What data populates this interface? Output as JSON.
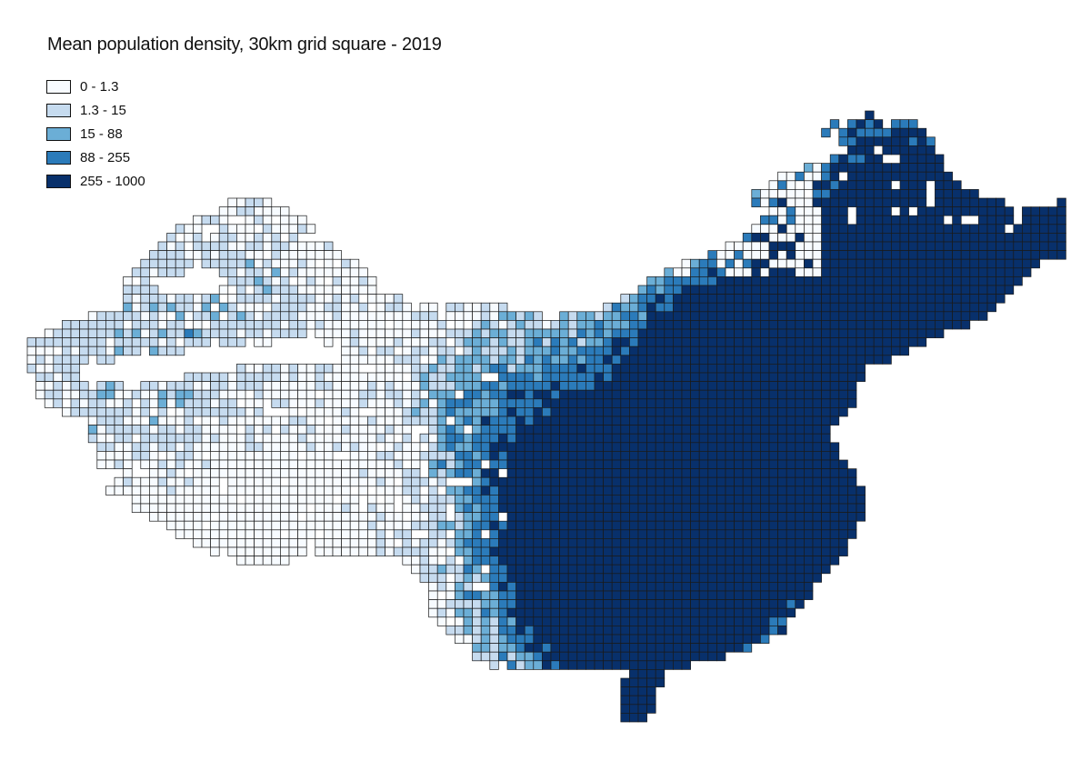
{
  "map": {
    "title": "Mean population density, 30km grid square - 2019",
    "legend": [
      {
        "label": "0 - 1.3",
        "color": "#f7fbff"
      },
      {
        "label": "1.3 - 15",
        "color": "#c6dbef"
      },
      {
        "label": "15 - 88",
        "color": "#6baed6"
      },
      {
        "label": "88 - 255",
        "color": "#2b7bba"
      },
      {
        "label": "255 - 1000",
        "color": "#08306b"
      }
    ],
    "cell_stroke": "#1a1a1a",
    "background": "#ffffff"
  }
}
